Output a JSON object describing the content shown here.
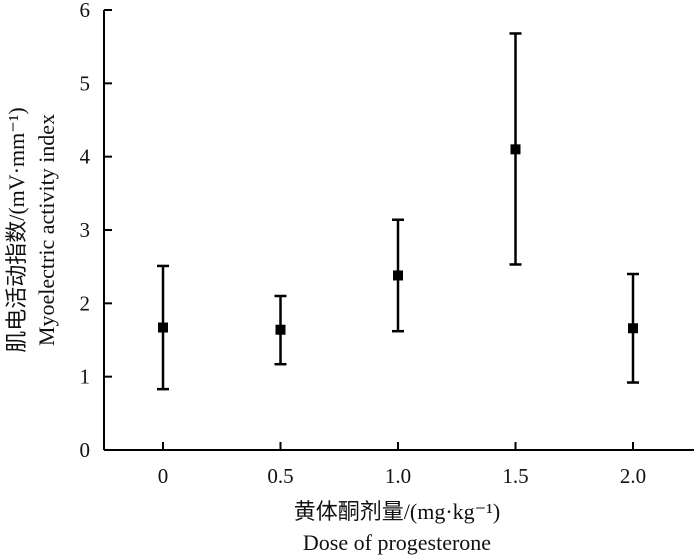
{
  "chart_data": {
    "type": "scatter",
    "x_categories": [
      "0",
      "0.5",
      "1.0",
      "1.5",
      "2.0"
    ],
    "y_ticks": [
      "0",
      "1",
      "2",
      "3",
      "4",
      "5",
      "6"
    ],
    "ylim": [
      0,
      6
    ],
    "xlabel_zh": "黄体酮剂量/(mg·kg⁻¹)",
    "xlabel_en": "Dose of progesterone",
    "ylabel_zh": "肌电活动指数/(mV·mm⁻¹)",
    "ylabel_en": "Myoelectric activity index",
    "grid": false,
    "legend": "none",
    "series": [
      {
        "x": [
          0,
          0.5,
          1.0,
          1.5,
          2.0
        ],
        "y": [
          1.67,
          1.64,
          2.38,
          4.1,
          1.66
        ],
        "y_lower": [
          0.83,
          1.17,
          1.62,
          2.53,
          0.92
        ],
        "y_upper": [
          2.51,
          2.1,
          3.14,
          5.68,
          2.4
        ]
      }
    ],
    "color": "#000000"
  }
}
